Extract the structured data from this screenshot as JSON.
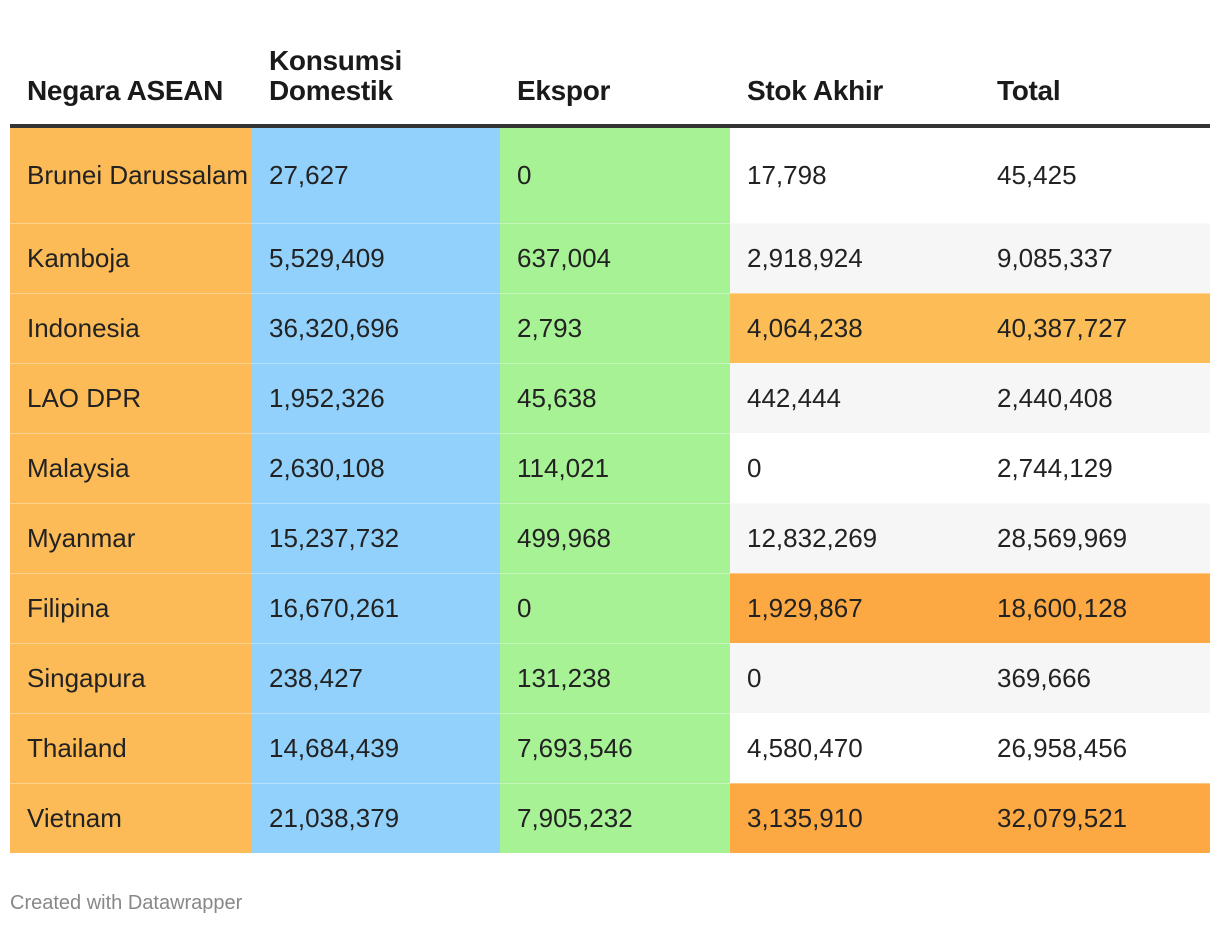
{
  "chart_data": {
    "type": "table",
    "columns": [
      "Negara ASEAN",
      "Konsumsi Domestik",
      "Ekspor",
      "Stok Akhir",
      "Total"
    ],
    "rows": [
      {
        "country": "Brunei Darussalam",
        "konsumsi": "27,627",
        "ekspor": "0",
        "stok": "17,798",
        "total": "45,425",
        "highlight": ""
      },
      {
        "country": "Kamboja",
        "konsumsi": "5,529,409",
        "ekspor": "637,004",
        "stok": "2,918,924",
        "total": "9,085,337",
        "highlight": ""
      },
      {
        "country": "Indonesia",
        "konsumsi": "36,320,696",
        "ekspor": "2,793",
        "stok": "4,064,238",
        "total": "40,387,727",
        "highlight": "light"
      },
      {
        "country": "LAO DPR",
        "konsumsi": "1,952,326",
        "ekspor": "45,638",
        "stok": "442,444",
        "total": "2,440,408",
        "highlight": ""
      },
      {
        "country": "Malaysia",
        "konsumsi": "2,630,108",
        "ekspor": "114,021",
        "stok": "0",
        "total": "2,744,129",
        "highlight": ""
      },
      {
        "country": "Myanmar",
        "konsumsi": "15,237,732",
        "ekspor": "499,968",
        "stok": "12,832,269",
        "total": "28,569,969",
        "highlight": ""
      },
      {
        "country": "Filipina",
        "konsumsi": "16,670,261",
        "ekspor": "0",
        "stok": "1,929,867",
        "total": "18,600,128",
        "highlight": "dark"
      },
      {
        "country": "Singapura",
        "konsumsi": "238,427",
        "ekspor": "131,238",
        "stok": "0",
        "total": "369,666",
        "highlight": ""
      },
      {
        "country": "Thailand",
        "konsumsi": "14,684,439",
        "ekspor": "7,693,546",
        "stok": "4,580,470",
        "total": "26,958,456",
        "highlight": ""
      },
      {
        "country": "Vietnam",
        "konsumsi": "21,038,379",
        "ekspor": "7,905,232",
        "stok": "3,135,910",
        "total": "32,079,521",
        "highlight": "dark"
      }
    ],
    "colors": {
      "country_column": "#fcbb56",
      "konsumsi_column": "#92d1fc",
      "ekspor_column": "#a6f294",
      "highlight_light": "#fcbd56",
      "highlight_dark": "#fda943"
    }
  },
  "footer": {
    "credit": "Created with Datawrapper"
  }
}
